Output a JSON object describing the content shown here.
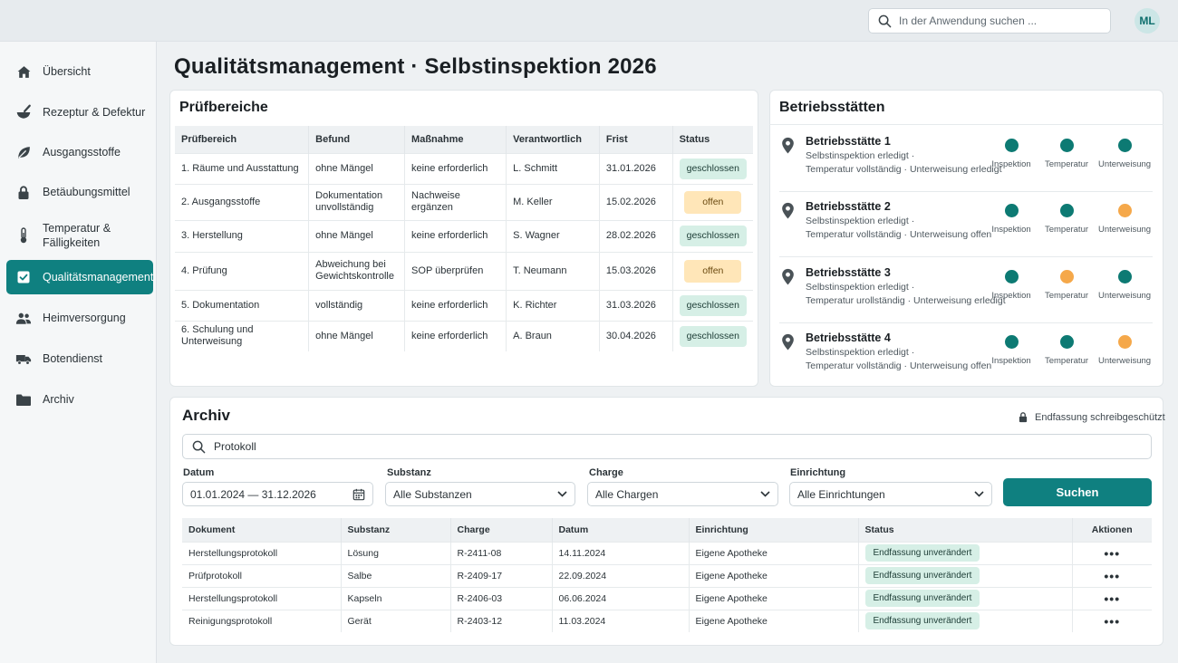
{
  "header": {
    "search_placeholder": "In der Anwendung suchen ...",
    "avatar_initials": "ML"
  },
  "sidebar": {
    "items": [
      {
        "label": "Übersicht",
        "icon": "home-icon"
      },
      {
        "label": "Rezeptur & Defektur",
        "icon": "mortar-icon"
      },
      {
        "label": "Ausgangsstoffe",
        "icon": "leaf-icon"
      },
      {
        "label": "Betäubungsmittel",
        "icon": "lock-icon"
      },
      {
        "label": "Temperatur & Fälligkeiten",
        "icon": "thermometer-icon"
      },
      {
        "label": "Qualitätsmanagement",
        "icon": "checkbox-icon",
        "active": true
      },
      {
        "label": "Heimversorgung",
        "icon": "people-icon"
      },
      {
        "label": "Botendienst",
        "icon": "truck-icon"
      },
      {
        "label": "Archiv",
        "icon": "folder-icon"
      }
    ]
  },
  "page_title": "Qualitätsmanagement · Selbstinspektion 2026",
  "pruefbereiche": {
    "title": "Prüfbereiche",
    "columns": [
      "Prüfbereich",
      "Befund",
      "Maßnahme",
      "Verantwortlich",
      "Frist",
      "Status"
    ],
    "rows": [
      {
        "bereich": "1. Räume und Ausstattung",
        "befund": "ohne Mängel",
        "massnahme": "keine erforderlich",
        "verantwortlich": "L. Schmitt",
        "frist": "31.01.2026",
        "status": "geschlossen",
        "state": "closed"
      },
      {
        "bereich": "2. Ausgangsstoffe",
        "befund": "Dokumentation unvollständig",
        "massnahme": "Nachweise ergänzen",
        "verantwortlich": "M. Keller",
        "frist": "15.02.2026",
        "status": "offen",
        "state": "open"
      },
      {
        "bereich": "3. Herstellung",
        "befund": "ohne Mängel",
        "massnahme": "keine erforderlich",
        "verantwortlich": "S. Wagner",
        "frist": "28.02.2026",
        "status": "geschlossen",
        "state": "closed"
      },
      {
        "bereich": "4. Prüfung",
        "befund": "Abweichung bei Gewichtskontrolle",
        "massnahme": "SOP überprüfen",
        "verantwortlich": "T. Neumann",
        "frist": "15.03.2026",
        "status": "offen",
        "state": "open"
      },
      {
        "bereich": "5. Dokumentation",
        "befund": "vollständig",
        "massnahme": "keine erforderlich",
        "verantwortlich": "K. Richter",
        "frist": "31.03.2026",
        "status": "geschlossen",
        "state": "closed"
      },
      {
        "bereich": "6. Schulung und Unterweisung",
        "befund": "ohne Mängel",
        "massnahme": "keine erforderlich",
        "verantwortlich": "A. Braun",
        "frist": "30.04.2026",
        "status": "geschlossen",
        "state": "closed"
      }
    ]
  },
  "betriebsstaetten": {
    "title": "Betriebsstätten",
    "indicator_labels": [
      "Inspektion",
      "Temperatur",
      "Unterweisung"
    ],
    "colors": {
      "ok": "#0d7a73",
      "warn": "#f5a84a"
    },
    "sites": [
      {
        "name": "Betriebsstätte 1",
        "line1": "Selbstinspektion erledigt ·",
        "line2": "Temperatur vollständig · Unterweisung erledigt",
        "states": [
          "ok",
          "ok",
          "ok"
        ]
      },
      {
        "name": "Betriebsstätte 2",
        "line1": "Selbstinspektion erledigt ·",
        "line2": "Temperatur vollständig · Unterweisung offen",
        "states": [
          "ok",
          "ok",
          "warn"
        ]
      },
      {
        "name": "Betriebsstätte 3",
        "line1": "Selbstinspektion erledigt ·",
        "line2": "Temperatur urollständig · Unterweisung erledigt",
        "states": [
          "ok",
          "warn",
          "ok"
        ]
      },
      {
        "name": "Betriebsstätte 4",
        "line1": "Selbstinspektion erledigt ·",
        "line2": "Temperatur vollständig · Unterweisung offen",
        "states": [
          "ok",
          "ok",
          "warn"
        ]
      }
    ]
  },
  "archiv": {
    "title": "Archiv",
    "lock_note": "Endfassung schreibgeschützt",
    "search_value": "Protokoll",
    "filters": {
      "datum_label": "Datum",
      "datum_value": "01.01.2024 — 31.12.2026",
      "substanz_label": "Substanz",
      "substanz_value": "Alle Substanzen",
      "charge_label": "Charge",
      "charge_value": "Alle Chargen",
      "einrichtung_label": "Einrichtung",
      "einrichtung_value": "Alle Einrichtungen"
    },
    "search_button": "Suchen",
    "columns": [
      "Dokument",
      "Substanz",
      "Charge",
      "Datum",
      "Einrichtung",
      "Status",
      "Aktionen"
    ],
    "rows": [
      {
        "dokument": "Herstellungsprotokoll",
        "substanz": "Lösung",
        "charge": "R-2411-08",
        "datum": "14.11.2024",
        "einrichtung": "Eigene Apotheke",
        "status": "Endfassung unverändert"
      },
      {
        "dokument": "Prüfprotokoll",
        "substanz": "Salbe",
        "charge": "R-2409-17",
        "datum": "22.09.2024",
        "einrichtung": "Eigene Apotheke",
        "status": "Endfassung unverändert"
      },
      {
        "dokument": "Herstellungsprotokoll",
        "substanz": "Kapseln",
        "charge": "R-2406-03",
        "datum": "06.06.2024",
        "einrichtung": "Eigene Apotheke",
        "status": "Endfassung unverändert"
      },
      {
        "dokument": "Reinigungsprotokoll",
        "substanz": "Gerät",
        "charge": "R-2403-12",
        "datum": "11.03.2024",
        "einrichtung": "Eigene Apotheke",
        "status": "Endfassung unverändert"
      }
    ],
    "actions_glyph": "•••"
  }
}
